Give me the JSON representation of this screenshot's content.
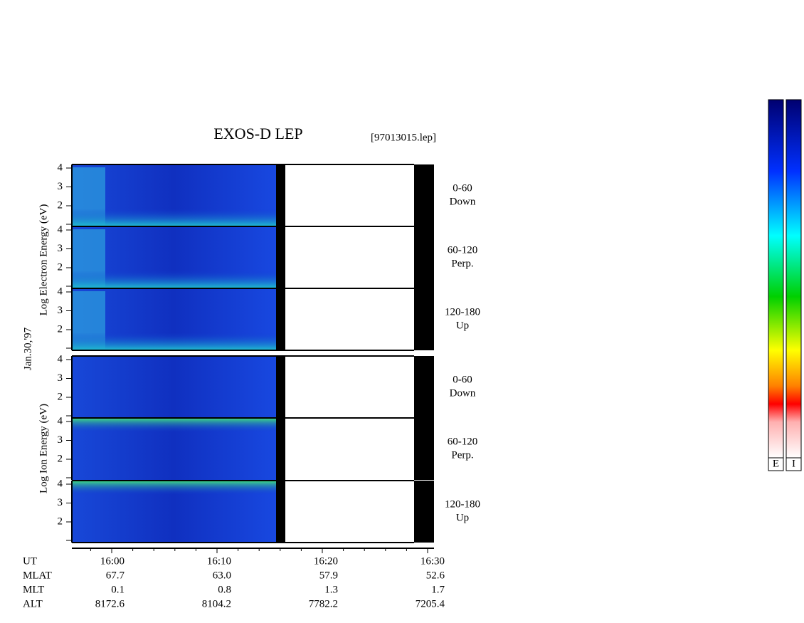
{
  "header": {
    "title": "EXOS-D LEP",
    "file": "[97013015.lep]"
  },
  "date": "Jan.30,'97",
  "groups": [
    {
      "label": "Log  Electron  Energy  (eV)",
      "panels": [
        {
          "angle": "0-60",
          "direction": "Down",
          "ticks": [
            "4",
            "3",
            "2"
          ]
        },
        {
          "angle": "60-120",
          "direction": "Perp.",
          "ticks": [
            "4",
            "3",
            "2"
          ]
        },
        {
          "angle": "120-180",
          "direction": "Up",
          "ticks": [
            "4",
            "3",
            "2"
          ]
        }
      ]
    },
    {
      "label": "Log  Ion  Energy  (eV)",
      "panels": [
        {
          "angle": "0-60",
          "direction": "Down",
          "ticks": [
            "4",
            "3",
            "2"
          ]
        },
        {
          "angle": "60-120",
          "direction": "Perp.",
          "ticks": [
            "4",
            "3",
            "2"
          ]
        },
        {
          "angle": "120-180",
          "direction": "Up",
          "ticks": [
            "4",
            "3",
            "2"
          ]
        }
      ]
    }
  ],
  "time_axis": {
    "ticks": [
      "16:00",
      "16:10",
      "16:20",
      "16:30"
    ]
  },
  "ephemeris": {
    "rows": [
      {
        "label": "UT"
      },
      {
        "label": "MLAT",
        "values": [
          "67.7",
          "63.0",
          "57.9",
          "52.6"
        ]
      },
      {
        "label": "MLT",
        "values": [
          "0.1",
          "0.8",
          "1.3",
          "1.7"
        ]
      },
      {
        "label": "ALT",
        "values": [
          "8172.6",
          "8104.2",
          "7782.2",
          "7205.4"
        ]
      }
    ]
  },
  "colorbars": [
    "E",
    "I"
  ]
}
